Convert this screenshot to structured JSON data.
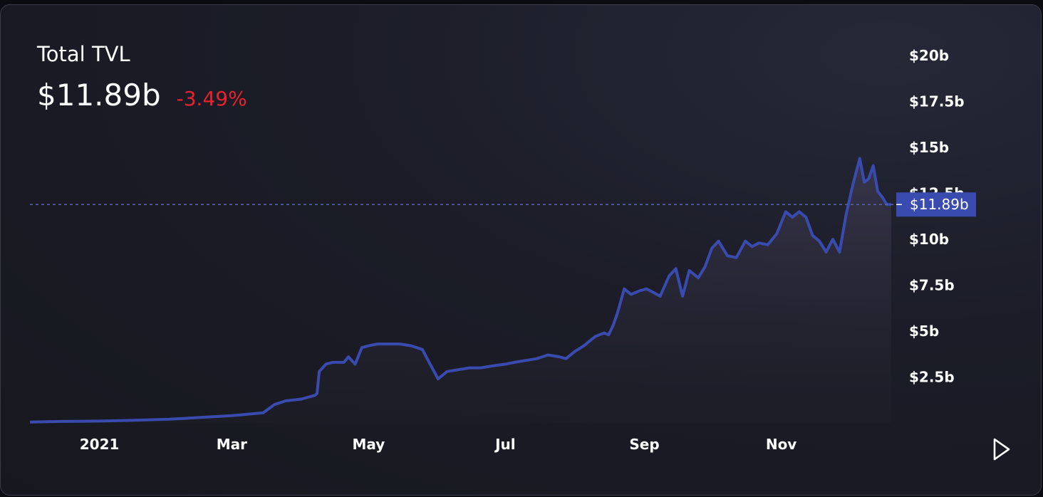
{
  "header": {
    "title": "Total TVL",
    "value": "$11.89b",
    "change": "-3.49%"
  },
  "colors": {
    "line": "#3a4bb0",
    "change_negative": "#e8222e",
    "current_label_bg": "#3a4bb0",
    "axis_text": "#ffffff"
  },
  "controls": {
    "play_icon": "play-icon"
  },
  "chart_data": {
    "type": "area",
    "title": "Total TVL",
    "xlabel": "",
    "ylabel": "",
    "x_ticks": [
      "2021",
      "Mar",
      "May",
      "Jul",
      "Sep",
      "Nov"
    ],
    "y_ticks": [
      "$2.5b",
      "$5b",
      "$7.5b",
      "$10b",
      "$12.5b",
      "$15b",
      "$17.5b",
      "$20b"
    ],
    "y_tick_values": [
      2.5,
      5,
      7.5,
      10,
      12.5,
      15,
      17.5,
      20
    ],
    "ylim": [
      0,
      20
    ],
    "xlim": [
      "2020-12-01",
      "2021-12-21"
    ],
    "y_unit": "billion USD",
    "current_value": 11.89,
    "current_label": "$11.89b",
    "grid": false,
    "series": [
      {
        "x": [
          "2020-12-01",
          "2020-12-15",
          "2021-01-01",
          "2021-01-15",
          "2021-02-01",
          "2021-02-15",
          "2021-03-01",
          "2021-03-15",
          "2021-03-20",
          "2021-03-25",
          "2021-04-01",
          "2021-04-07",
          "2021-04-08",
          "2021-04-09",
          "2021-04-12",
          "2021-04-15",
          "2021-04-20",
          "2021-04-22",
          "2021-04-25",
          "2021-04-28",
          "2021-05-01",
          "2021-05-05",
          "2021-05-10",
          "2021-05-15",
          "2021-05-20",
          "2021-05-25",
          "2021-05-28",
          "2021-06-01",
          "2021-06-05",
          "2021-06-10",
          "2021-06-15",
          "2021-06-20",
          "2021-06-25",
          "2021-07-01",
          "2021-07-05",
          "2021-07-10",
          "2021-07-15",
          "2021-07-20",
          "2021-07-25",
          "2021-07-28",
          "2021-08-01",
          "2021-08-05",
          "2021-08-10",
          "2021-08-14",
          "2021-08-16",
          "2021-08-18",
          "2021-08-20",
          "2021-08-23",
          "2021-08-26",
          "2021-08-30",
          "2021-09-02",
          "2021-09-05",
          "2021-09-08",
          "2021-09-12",
          "2021-09-15",
          "2021-09-18",
          "2021-09-21",
          "2021-09-25",
          "2021-09-28",
          "2021-10-01",
          "2021-10-04",
          "2021-10-08",
          "2021-10-12",
          "2021-10-16",
          "2021-10-19",
          "2021-10-22",
          "2021-10-26",
          "2021-10-30",
          "2021-11-03",
          "2021-11-06",
          "2021-11-09",
          "2021-11-12",
          "2021-11-15",
          "2021-11-18",
          "2021-11-21",
          "2021-11-24",
          "2021-11-27",
          "2021-11-30",
          "2021-12-03",
          "2021-12-06",
          "2021-12-08",
          "2021-12-10",
          "2021-12-12",
          "2021-12-14",
          "2021-12-16",
          "2021-12-18",
          "2021-12-20"
        ],
        "values": [
          0.05,
          0.08,
          0.1,
          0.14,
          0.2,
          0.3,
          0.4,
          0.55,
          1.0,
          1.2,
          1.3,
          1.5,
          1.6,
          2.8,
          3.2,
          3.3,
          3.3,
          3.6,
          3.2,
          4.1,
          4.2,
          4.3,
          4.3,
          4.3,
          4.2,
          4.0,
          3.3,
          2.4,
          2.8,
          2.9,
          3.0,
          3.0,
          3.1,
          3.2,
          3.3,
          3.4,
          3.5,
          3.7,
          3.6,
          3.5,
          3.9,
          4.2,
          4.7,
          4.9,
          4.8,
          5.3,
          6.0,
          7.3,
          7.0,
          7.2,
          7.3,
          7.1,
          6.9,
          8.0,
          8.4,
          6.9,
          8.3,
          7.9,
          8.5,
          9.5,
          9.9,
          9.1,
          9.0,
          9.9,
          9.6,
          9.8,
          9.7,
          10.3,
          11.5,
          11.2,
          11.5,
          11.2,
          10.2,
          9.9,
          9.3,
          10.0,
          9.3,
          11.4,
          13.0,
          14.4,
          13.1,
          13.3,
          14.0,
          12.6,
          12.3,
          11.9,
          11.89
        ]
      }
    ]
  }
}
